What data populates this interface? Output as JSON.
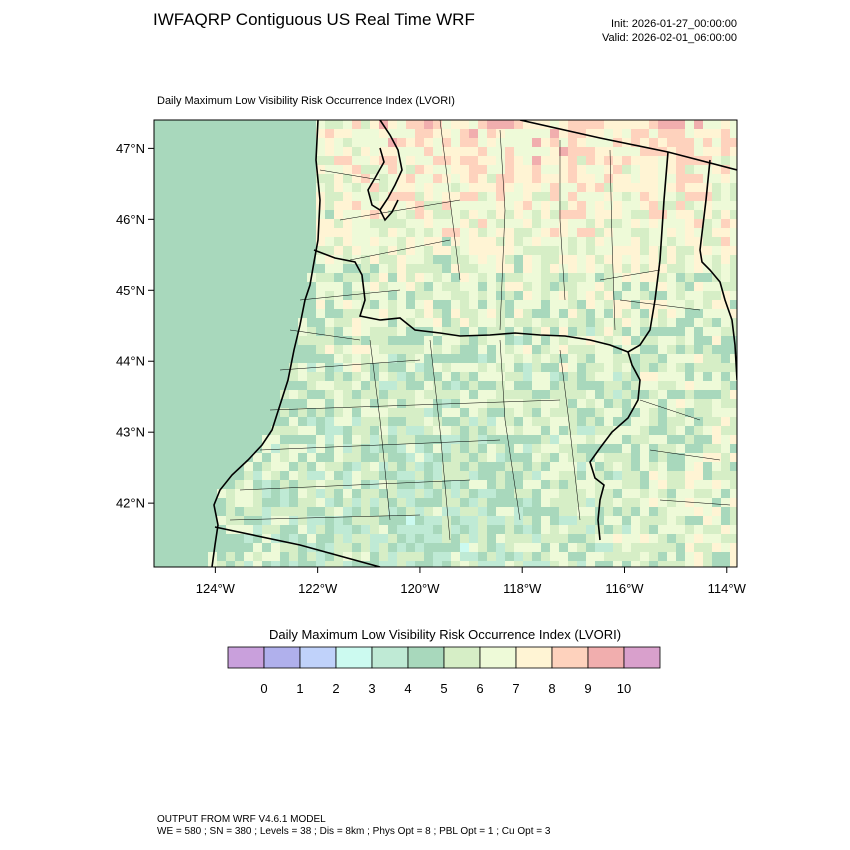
{
  "header": {
    "title": "IWFAQRP Contiguous US Real Time WRF",
    "init": "Init: 2026-01-27_00:00:00",
    "valid": "Valid: 2026-02-01_06:00:00"
  },
  "panel": {
    "title": "Daily Maximum Low Visibility Risk Occurrence Index   (LVORI)"
  },
  "map": {
    "lon_range": [
      -125.2,
      -113.8
    ],
    "lat_range": [
      41.1,
      47.4
    ],
    "lat_ticks": [
      {
        "value": 47,
        "label": "47°N"
      },
      {
        "value": 46,
        "label": "46°N"
      },
      {
        "value": 45,
        "label": "45°N"
      },
      {
        "value": 44,
        "label": "44°N"
      },
      {
        "value": 43,
        "label": "43°N"
      },
      {
        "value": 42,
        "label": "42°N"
      }
    ],
    "lon_ticks": [
      {
        "value": -124,
        "label": "124°W"
      },
      {
        "value": -122,
        "label": "122°W"
      },
      {
        "value": -120,
        "label": "120°W"
      },
      {
        "value": -118,
        "label": "118°W"
      },
      {
        "value": -116,
        "label": "116°W"
      },
      {
        "value": -114,
        "label": "114°W"
      }
    ],
    "ocean_color": "#a8d8bc"
  },
  "colorbar": {
    "title": "Daily Maximum Low Visibility Risk Occurrence Index  (LVORI)",
    "colors": [
      "#c9a0dc",
      "#b0b0ec",
      "#c0d2fa",
      "#ccfaf0",
      "#bfead5",
      "#a8d8bc",
      "#d6eec6",
      "#eefad8",
      "#fff4d4",
      "#fed2bd",
      "#f1aeae",
      "#d9a0cc"
    ],
    "labels": [
      "0",
      "1",
      "2",
      "3",
      "4",
      "5",
      "6",
      "7",
      "8",
      "9",
      "10"
    ]
  },
  "footer": {
    "line1": "OUTPUT FROM WRF V4.6.1 MODEL",
    "line2": "WE = 580 ; SN = 380 ; Levels = 38 ; Dis = 8km ; Phys Opt = 8 ; PBL Opt = 1 ; Cu Opt = 3"
  }
}
